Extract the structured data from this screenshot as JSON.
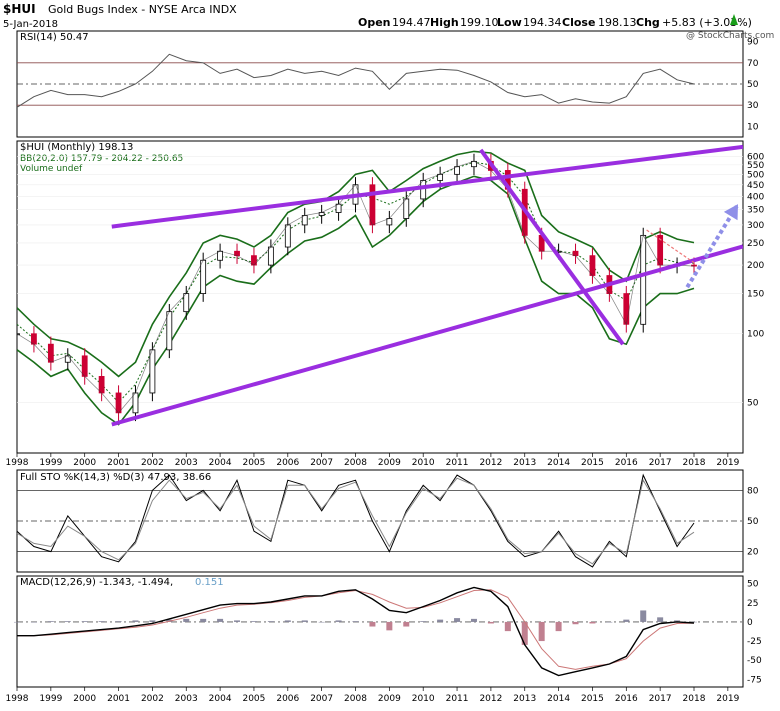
{
  "header": {
    "symbol": "$HUI",
    "name": "Gold Bugs Index - NYSE Arca INDX",
    "date": "5-Jan-2018",
    "open_label": "Open",
    "open": "194.47",
    "high_label": "High",
    "high": "199.10",
    "low_label": "Low",
    "low": "194.34",
    "close_label": "Close",
    "close": "198.13",
    "chg_label": "Chg",
    "chg": "+5.83 (+3.03%)",
    "watermark": "@ StockCharts.com"
  },
  "colors": {
    "price_up": "#000000",
    "price_down": "#cc0033",
    "bollinger": "#1a6e1a",
    "trendline": "#9a2ee0",
    "forecast_arrow": "#8f8fe8",
    "resistance": "#ee7777",
    "macd_hist": "#c08090",
    "rsi_line": "#555555",
    "panel_border": "#000000"
  },
  "x_axis_years": [
    "1998",
    "1999",
    "2000",
    "2001",
    "2002",
    "2003",
    "2004",
    "2005",
    "2006",
    "2007",
    "2008",
    "2009",
    "2010",
    "2011",
    "2012",
    "2013",
    "2014",
    "2015",
    "2016",
    "2017",
    "2018",
    "2019"
  ],
  "panels": {
    "rsi": {
      "legend": "RSI(14) 50.47",
      "ticks": [
        "90",
        "70",
        "50",
        "30",
        "10"
      ]
    },
    "price": {
      "legend_title": "$HUI (Monthly) 198.13",
      "legend_bb": "BB(20,2.0) 157.79 - 204.22 - 250.65",
      "legend_volume": "Volume undef",
      "ticks": [
        "600",
        "550",
        "500",
        "450",
        "400",
        "350",
        "300",
        "250",
        "200",
        "150",
        "100",
        "50"
      ]
    },
    "sto": {
      "legend": "Full STO %K(14,3) %D(3) 47.93, 38.66",
      "ticks": [
        "80",
        "50",
        "20"
      ]
    },
    "macd": {
      "legend_main": "MACD(12,26,9) -1.343, -1.494,",
      "legend_hist": "0.151",
      "ticks": [
        "50",
        "25",
        "0",
        "-25",
        "-50",
        "-75"
      ]
    }
  },
  "chart_data": [
    {
      "type": "line",
      "title": "RSI(14)",
      "ylim": [
        0,
        100
      ],
      "reference_lines": [
        70,
        50,
        30
      ],
      "x": [
        1998,
        1998.5,
        1999,
        1999.5,
        2000,
        2000.5,
        2001,
        2001.5,
        2002,
        2002.5,
        2003,
        2003.5,
        2004,
        2004.5,
        2005,
        2005.5,
        2006,
        2006.5,
        2007,
        2007.5,
        2008,
        2008.5,
        2009,
        2009.5,
        2010,
        2010.5,
        2011,
        2011.5,
        2012,
        2012.5,
        2013,
        2013.5,
        2014,
        2014.5,
        2015,
        2015.5,
        2016,
        2016.5,
        2017,
        2017.5,
        2018
      ],
      "values": [
        28,
        38,
        44,
        40,
        40,
        38,
        43,
        50,
        62,
        78,
        72,
        70,
        60,
        64,
        56,
        58,
        64,
        60,
        62,
        58,
        65,
        62,
        45,
        60,
        62,
        64,
        63,
        58,
        52,
        42,
        38,
        40,
        32,
        36,
        33,
        32,
        38,
        60,
        64,
        54,
        50
      ]
    },
    {
      "type": "candlestick",
      "title": "$HUI (Monthly)",
      "ylim": [
        30,
        650
      ],
      "series": [
        {
          "name": "$HUI (Monthly)",
          "x": [
            1998,
            1998.5,
            1999,
            1999.5,
            2000,
            2000.5,
            2001,
            2001.5,
            2002,
            2002.5,
            2003,
            2003.5,
            2004,
            2004.5,
            2005,
            2005.5,
            2006,
            2006.5,
            2007,
            2007.5,
            2008,
            2008.5,
            2009,
            2009.5,
            2010,
            2010.5,
            2011,
            2011.5,
            2012,
            2012.5,
            2013,
            2013.5,
            2014,
            2014.5,
            2015,
            2015.5,
            2016,
            2016.5,
            2017,
            2017.5,
            2018
          ],
          "values": [
            100,
            90,
            75,
            80,
            65,
            55,
            45,
            55,
            85,
            125,
            150,
            210,
            230,
            220,
            200,
            240,
            300,
            330,
            340,
            370,
            450,
            300,
            320,
            390,
            470,
            500,
            540,
            570,
            520,
            430,
            270,
            230,
            230,
            220,
            180,
            150,
            110,
            270,
            200,
            200,
            198
          ]
        },
        {
          "name": "BB upper",
          "values": [
            130,
            110,
            95,
            92,
            85,
            75,
            65,
            75,
            110,
            145,
            185,
            250,
            270,
            260,
            240,
            270,
            340,
            370,
            380,
            420,
            500,
            520,
            420,
            470,
            530,
            570,
            610,
            630,
            620,
            560,
            520,
            330,
            280,
            260,
            240,
            190,
            170,
            260,
            280,
            260,
            251
          ]
        },
        {
          "name": "BB middle",
          "values": [
            110,
            95,
            80,
            82,
            70,
            60,
            50,
            60,
            85,
            118,
            150,
            198,
            218,
            215,
            205,
            235,
            285,
            315,
            328,
            355,
            410,
            395,
            370,
            400,
            455,
            500,
            535,
            565,
            550,
            490,
            400,
            270,
            230,
            225,
            200,
            155,
            140,
            200,
            215,
            205,
            204
          ]
        },
        {
          "name": "BB lower",
          "values": [
            85,
            75,
            65,
            70,
            55,
            45,
            40,
            50,
            70,
            90,
            120,
            160,
            180,
            170,
            165,
            195,
            225,
            255,
            265,
            290,
            330,
            240,
            270,
            320,
            380,
            430,
            460,
            490,
            470,
            410,
            260,
            170,
            150,
            150,
            130,
            95,
            90,
            130,
            150,
            150,
            158
          ]
        }
      ],
      "annotations": [
        {
          "type": "trend-channel",
          "from": [
            2000.8,
            40
          ],
          "to": [
            2018,
            210
          ]
        },
        {
          "type": "trend-channel",
          "from": [
            2000.8,
            295
          ],
          "to": [
            2018,
            620
          ]
        },
        {
          "type": "trend-line",
          "from": [
            2011.7,
            640
          ],
          "to": [
            2015.9,
            90
          ]
        },
        {
          "type": "forecast-arrow",
          "from": [
            2017.8,
            160
          ],
          "to": [
            2019.3,
            370
          ]
        }
      ]
    },
    {
      "type": "line",
      "title": "Full STO %K(14,3) %D(3)",
      "ylim": [
        0,
        100
      ],
      "reference_lines": [
        80,
        50,
        20
      ],
      "x": [
        1998,
        1998.5,
        1999,
        1999.5,
        2000,
        2000.5,
        2001,
        2001.5,
        2002,
        2002.5,
        2003,
        2003.5,
        2004,
        2004.5,
        2005,
        2005.5,
        2006,
        2006.5,
        2007,
        2007.5,
        2008,
        2008.5,
        2009,
        2009.5,
        2010,
        2010.5,
        2011,
        2011.5,
        2012,
        2012.5,
        2013,
        2013.5,
        2014,
        2014.5,
        2015,
        2015.5,
        2016,
        2016.5,
        2017,
        2017.5,
        2018
      ],
      "series": [
        {
          "name": "%K",
          "values": [
            40,
            25,
            20,
            55,
            35,
            15,
            10,
            30,
            80,
            95,
            70,
            80,
            60,
            90,
            40,
            30,
            90,
            85,
            60,
            85,
            90,
            50,
            20,
            60,
            85,
            70,
            95,
            85,
            60,
            30,
            15,
            20,
            40,
            15,
            5,
            30,
            15,
            95,
            60,
            25,
            48
          ]
        },
        {
          "name": "%D",
          "values": [
            38,
            28,
            25,
            45,
            35,
            20,
            12,
            28,
            70,
            90,
            72,
            78,
            62,
            85,
            45,
            32,
            85,
            85,
            62,
            82,
            88,
            55,
            25,
            58,
            82,
            72,
            92,
            85,
            62,
            32,
            18,
            20,
            38,
            18,
            8,
            28,
            18,
            90,
            62,
            28,
            39
          ]
        }
      ]
    },
    {
      "type": "line",
      "title": "MACD(12,26,9)",
      "ylim": [
        -85,
        60
      ],
      "x": [
        1998,
        1998.5,
        1999,
        1999.5,
        2000,
        2000.5,
        2001,
        2001.5,
        2002,
        2002.5,
        2003,
        2003.5,
        2004,
        2004.5,
        2005,
        2005.5,
        2006,
        2006.5,
        2007,
        2007.5,
        2008,
        2008.5,
        2009,
        2009.5,
        2010,
        2010.5,
        2011,
        2011.5,
        2012,
        2012.5,
        2013,
        2013.5,
        2014,
        2014.5,
        2015,
        2015.5,
        2016,
        2016.5,
        2017,
        2017.5,
        2018
      ],
      "series": [
        {
          "name": "MACD",
          "values": [
            -18,
            -18,
            -16,
            -14,
            -12,
            -10,
            -8,
            -5,
            -2,
            4,
            10,
            16,
            22,
            24,
            24,
            26,
            30,
            34,
            34,
            40,
            42,
            30,
            15,
            12,
            20,
            28,
            38,
            45,
            40,
            20,
            -30,
            -60,
            -70,
            -65,
            -60,
            -55,
            -45,
            -10,
            -2,
            0,
            -1.343
          ]
        },
        {
          "name": "Signal",
          "values": [
            -18,
            -18,
            -17,
            -15,
            -13,
            -11,
            -9,
            -7,
            -4,
            1,
            6,
            12,
            18,
            22,
            23,
            25,
            28,
            32,
            34,
            38,
            41,
            36,
            26,
            18,
            19,
            25,
            33,
            41,
            42,
            32,
            0,
            -35,
            -58,
            -62,
            -58,
            -55,
            -48,
            -25,
            -8,
            -2,
            -1.494
          ]
        },
        {
          "name": "Histogram",
          "values": [
            0,
            0,
            1,
            1,
            1,
            1,
            1,
            2,
            2,
            3,
            4,
            4,
            4,
            2,
            1,
            1,
            2,
            2,
            0,
            2,
            1,
            -6,
            -11,
            -6,
            1,
            3,
            5,
            4,
            -2,
            -12,
            -30,
            -25,
            -12,
            -3,
            -2,
            0,
            3,
            15,
            6,
            2,
            0.151
          ]
        }
      ]
    }
  ]
}
